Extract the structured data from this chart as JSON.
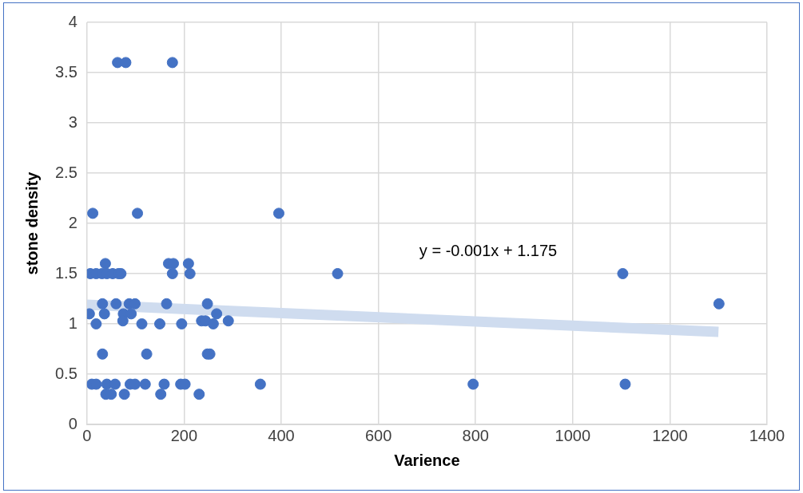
{
  "chart_data": {
    "type": "scatter",
    "xlabel": "Varience",
    "ylabel": "stone density",
    "xlim": [
      0,
      1400
    ],
    "xticks": [
      0,
      200,
      400,
      600,
      800,
      1000,
      1200,
      1400
    ],
    "ylim": [
      0,
      4
    ],
    "yticks": [
      0,
      0.5,
      1,
      1.5,
      2,
      2.5,
      3,
      3.5,
      4
    ],
    "grid": true,
    "legend": false,
    "annotations": [
      "y = -0.001x + 1.175"
    ],
    "series": [
      {
        "color": "#4472c4",
        "marker": "circle",
        "x": [
          63,
          80,
          176,
          12,
          104,
          395,
          38,
          168,
          178,
          209,
          7,
          19,
          31,
          41,
          53,
          65,
          70,
          176,
          212,
          516,
          1103,
          32,
          60,
          87,
          99,
          164,
          248,
          1301,
          5,
          36,
          75,
          91,
          267,
          19,
          74,
          113,
          150,
          195,
          236,
          244,
          260,
          291,
          32,
          123,
          248,
          253,
          10,
          19,
          41,
          58,
          89,
          99,
          120,
          159,
          193,
          202,
          357,
          795,
          1108,
          39,
          50,
          77,
          152,
          231
        ],
        "values": [
          3.6,
          3.6,
          3.6,
          2.1,
          2.1,
          2.1,
          1.6,
          1.6,
          1.6,
          1.6,
          1.5,
          1.5,
          1.5,
          1.5,
          1.5,
          1.5,
          1.5,
          1.5,
          1.5,
          1.5,
          1.5,
          1.2,
          1.2,
          1.2,
          1.2,
          1.2,
          1.2,
          1.2,
          1.1,
          1.1,
          1.1,
          1.1,
          1.1,
          1,
          1.03,
          1,
          1,
          1,
          1.03,
          1.03,
          1,
          1.03,
          0.7,
          0.7,
          0.7,
          0.7,
          0.4,
          0.4,
          0.4,
          0.4,
          0.4,
          0.4,
          0.4,
          0.4,
          0.4,
          0.4,
          0.4,
          0.4,
          0.4,
          0.3,
          0.3,
          0.3,
          0.3,
          0.3
        ]
      },
      {
        "type": "line",
        "color": "#cfdcef",
        "x": [
          0,
          1300
        ],
        "values": [
          1.19,
          0.92
        ]
      }
    ]
  }
}
